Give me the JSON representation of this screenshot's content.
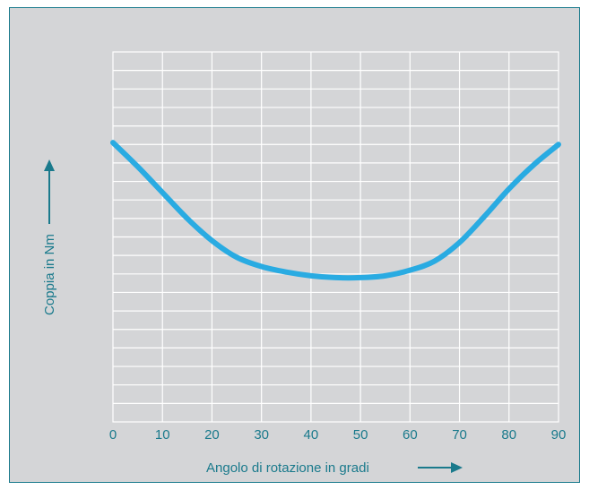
{
  "chart_data": {
    "type": "line",
    "title": "",
    "xlabel": "Angolo di rotazione in gradi",
    "ylabel": "Coppia in  Nm",
    "xlim": [
      0,
      90
    ],
    "ylim": [
      0,
      20
    ],
    "grid": true,
    "x_ticks": [
      "0",
      "10",
      "20",
      "30",
      "40",
      "50",
      "60",
      "70",
      "80",
      "90"
    ],
    "x": [
      0,
      5,
      10,
      15,
      20,
      25,
      30,
      35,
      40,
      45,
      50,
      55,
      60,
      65,
      70,
      75,
      80,
      85,
      90
    ],
    "values": [
      15.1,
      13.8,
      12.4,
      11.0,
      9.8,
      8.9,
      8.4,
      8.1,
      7.9,
      7.8,
      7.8,
      7.9,
      8.2,
      8.7,
      9.7,
      11.1,
      12.6,
      13.9,
      15.0
    ],
    "line_color": "#29abe2",
    "text_color": "#1a7a8c",
    "grid_color": "#ffffff"
  }
}
